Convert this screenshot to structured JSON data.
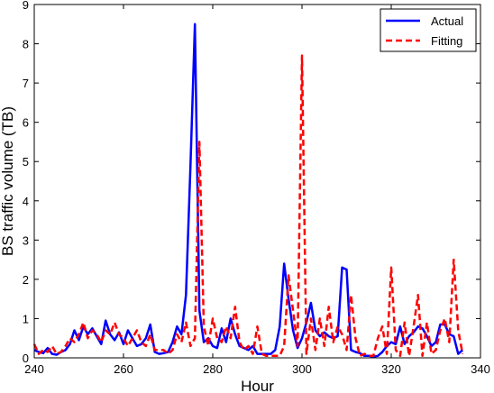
{
  "chart_data": {
    "type": "line",
    "xlabel": "Hour",
    "ylabel": "BS traffic volume (TB)",
    "xlim": [
      240,
      340
    ],
    "ylim": [
      0,
      9
    ],
    "xticks": [
      240,
      260,
      280,
      300,
      320,
      340
    ],
    "yticks": [
      0,
      1,
      2,
      3,
      4,
      5,
      6,
      7,
      8,
      9
    ],
    "grid": false,
    "legend_position": "top-right",
    "series": [
      {
        "name": "Actual",
        "color": "#0000ff",
        "style": "solid",
        "x": [
          240,
          241,
          242,
          243,
          244,
          245,
          246,
          247,
          248,
          249,
          250,
          251,
          252,
          253,
          254,
          255,
          256,
          257,
          258,
          259,
          260,
          261,
          262,
          263,
          264,
          265,
          266,
          267,
          268,
          269,
          270,
          271,
          272,
          273,
          274,
          275,
          276,
          277,
          278,
          279,
          280,
          281,
          282,
          283,
          284,
          285,
          286,
          287,
          288,
          289,
          290,
          291,
          292,
          293,
          294,
          295,
          296,
          297,
          298,
          299,
          300,
          301,
          302,
          303,
          304,
          305,
          306,
          307,
          308,
          309,
          310,
          311,
          312,
          313,
          314,
          315,
          316,
          317,
          318,
          319,
          320,
          321,
          322,
          323,
          324,
          325,
          326,
          327,
          328,
          329,
          330,
          331,
          332,
          333,
          334,
          335,
          336
        ],
        "y": [
          0.2,
          0.15,
          0.12,
          0.25,
          0.1,
          0.08,
          0.15,
          0.2,
          0.35,
          0.7,
          0.45,
          0.8,
          0.6,
          0.75,
          0.55,
          0.35,
          0.95,
          0.6,
          0.45,
          0.65,
          0.35,
          0.7,
          0.5,
          0.3,
          0.35,
          0.5,
          0.85,
          0.15,
          0.1,
          0.12,
          0.15,
          0.4,
          0.8,
          0.6,
          1.6,
          4.9,
          8.5,
          1.2,
          0.4,
          0.5,
          0.3,
          0.25,
          0.75,
          0.4,
          1.0,
          0.6,
          0.3,
          0.25,
          0.2,
          0.3,
          0.1,
          0.1,
          0.1,
          0.1,
          0.2,
          0.8,
          2.4,
          1.5,
          0.7,
          0.25,
          0.5,
          0.9,
          1.4,
          0.7,
          0.55,
          0.65,
          0.55,
          0.5,
          0.55,
          2.3,
          2.25,
          0.2,
          0.15,
          0.12,
          0.05,
          0.05,
          0.03,
          0.05,
          0.15,
          0.3,
          0.4,
          0.35,
          0.8,
          0.35,
          0.55,
          0.65,
          0.8,
          0.75,
          0.55,
          0.3,
          0.4,
          0.85,
          0.85,
          0.6,
          0.55,
          0.1,
          0.2
        ]
      },
      {
        "name": "Fitting",
        "color": "#ff0000",
        "style": "dashed",
        "x": [
          240,
          241,
          242,
          243,
          244,
          245,
          246,
          247,
          248,
          249,
          250,
          251,
          252,
          253,
          254,
          255,
          256,
          257,
          258,
          259,
          260,
          261,
          262,
          263,
          264,
          265,
          266,
          267,
          268,
          269,
          270,
          271,
          272,
          273,
          274,
          275,
          276,
          277,
          278,
          279,
          280,
          281,
          282,
          283,
          284,
          285,
          286,
          287,
          288,
          289,
          290,
          291,
          292,
          293,
          294,
          295,
          296,
          297,
          298,
          299,
          300,
          301,
          302,
          303,
          304,
          305,
          306,
          307,
          308,
          309,
          310,
          311,
          312,
          313,
          314,
          315,
          316,
          317,
          318,
          319,
          320,
          321,
          322,
          323,
          324,
          325,
          326,
          327,
          328,
          329,
          330,
          331,
          332,
          333,
          334,
          335,
          336
        ],
        "y": [
          0.35,
          0.1,
          0.2,
          0.15,
          0.3,
          0.1,
          0.15,
          0.3,
          0.5,
          0.4,
          0.6,
          0.9,
          0.5,
          0.7,
          0.6,
          0.4,
          0.7,
          0.6,
          0.9,
          0.6,
          0.5,
          0.3,
          0.5,
          0.7,
          0.4,
          0.3,
          0.6,
          0.2,
          0.2,
          0.2,
          0.1,
          0.2,
          0.6,
          0.4,
          0.9,
          0.3,
          0.5,
          5.5,
          0.8,
          0.3,
          1.0,
          0.5,
          0.4,
          0.8,
          0.5,
          1.3,
          0.4,
          0.2,
          0.3,
          0.1,
          0.8,
          0.1,
          0.05,
          0.05,
          0.05,
          0.05,
          0.3,
          2.1,
          1.2,
          0.3,
          7.7,
          0.1,
          1.0,
          0.2,
          1.0,
          0.3,
          1.3,
          0.4,
          0.8,
          0.6,
          0.2,
          1.6,
          0.5,
          0.05,
          0.1,
          0.05,
          0.05,
          0.5,
          0.8,
          0.1,
          2.3,
          0.2,
          0.05,
          0.9,
          0.05,
          0.8,
          1.6,
          0.05,
          0.9,
          0.1,
          0.2,
          0.7,
          1.0,
          0.4,
          2.5,
          0.7,
          0.1
        ]
      }
    ]
  }
}
